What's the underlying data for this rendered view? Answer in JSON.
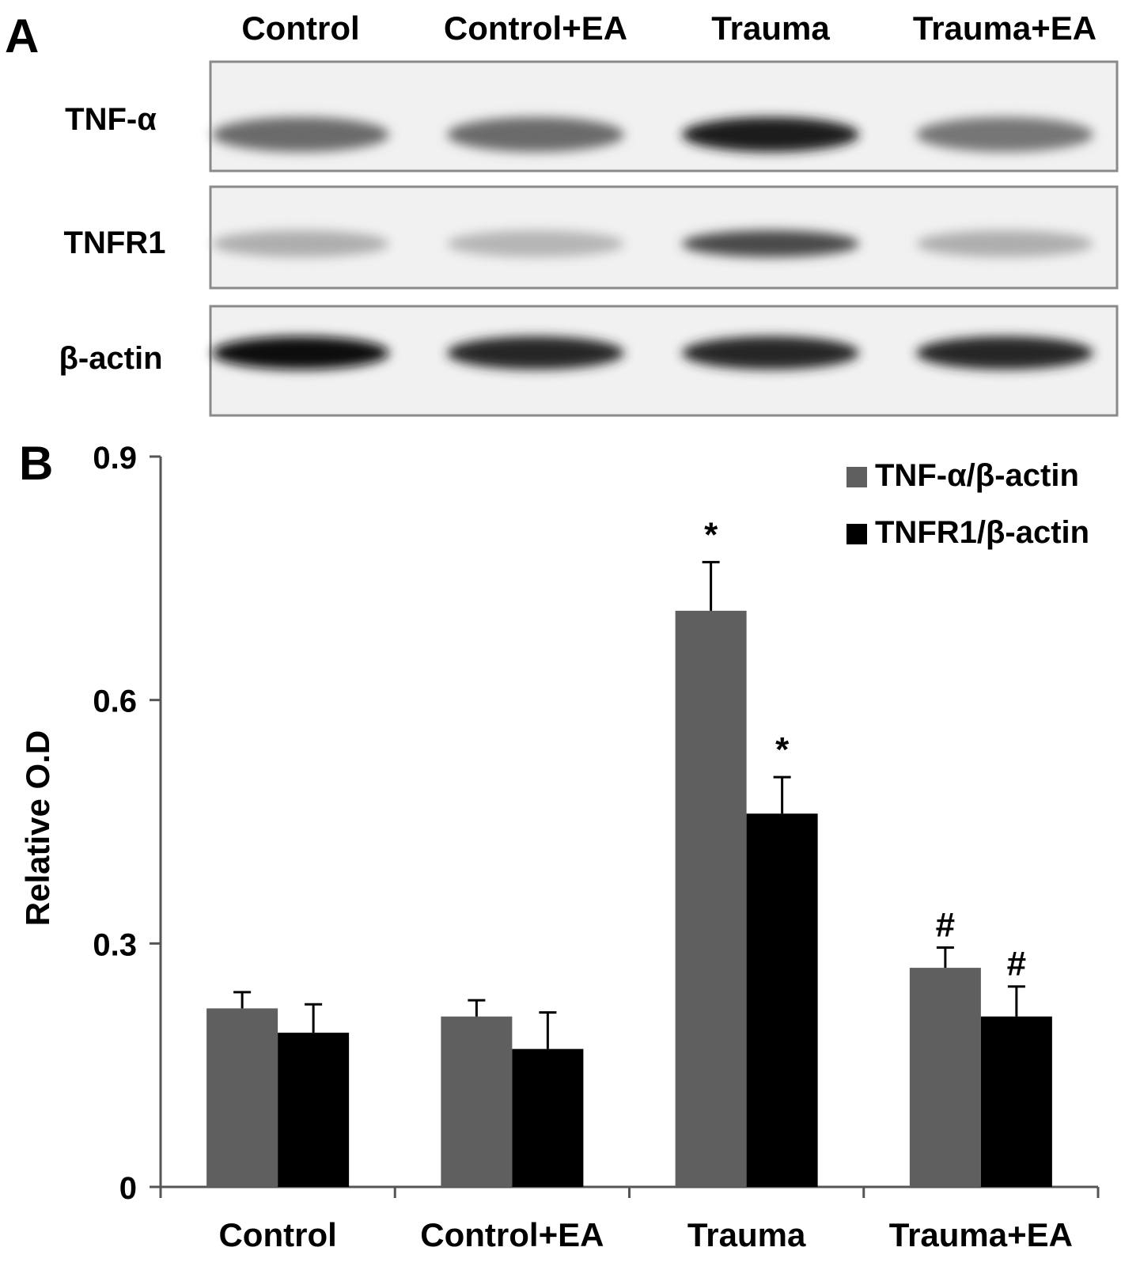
{
  "panel_a": {
    "letter": "A",
    "lanes": [
      "Control",
      "Control+EA",
      "Trauma",
      "Trauma+EA"
    ],
    "rows": [
      {
        "label": "TNF-α",
        "intensity": [
          0.55,
          0.55,
          0.9,
          0.5
        ]
      },
      {
        "label": "TNFR1",
        "intensity": [
          0.25,
          0.22,
          0.7,
          0.25
        ]
      },
      {
        "label": "β-actin",
        "intensity": [
          0.95,
          0.85,
          0.85,
          0.85
        ]
      }
    ]
  },
  "panel_b": {
    "letter": "B"
  },
  "chart_data": {
    "type": "bar",
    "categories": [
      "Control",
      "Control+EA",
      "Trauma",
      "Trauma+EA"
    ],
    "ylabel": "Relative O.D",
    "ylim": [
      0,
      0.9
    ],
    "yticks": [
      "0",
      "0.3",
      "0.6",
      "0.9"
    ],
    "legend_position": "top-right",
    "series": [
      {
        "name": "TNF-α/β-actin",
        "color": "#5f5f5f",
        "values": [
          0.22,
          0.21,
          0.71,
          0.27
        ],
        "errors": [
          0.02,
          0.02,
          0.06,
          0.025
        ],
        "annotations": [
          "",
          "",
          "*",
          "#"
        ]
      },
      {
        "name": "TNFR1/β-actin",
        "color": "#000000",
        "values": [
          0.19,
          0.17,
          0.46,
          0.21
        ],
        "errors": [
          0.035,
          0.045,
          0.045,
          0.037
        ],
        "annotations": [
          "",
          "",
          "*",
          "#"
        ]
      }
    ]
  }
}
